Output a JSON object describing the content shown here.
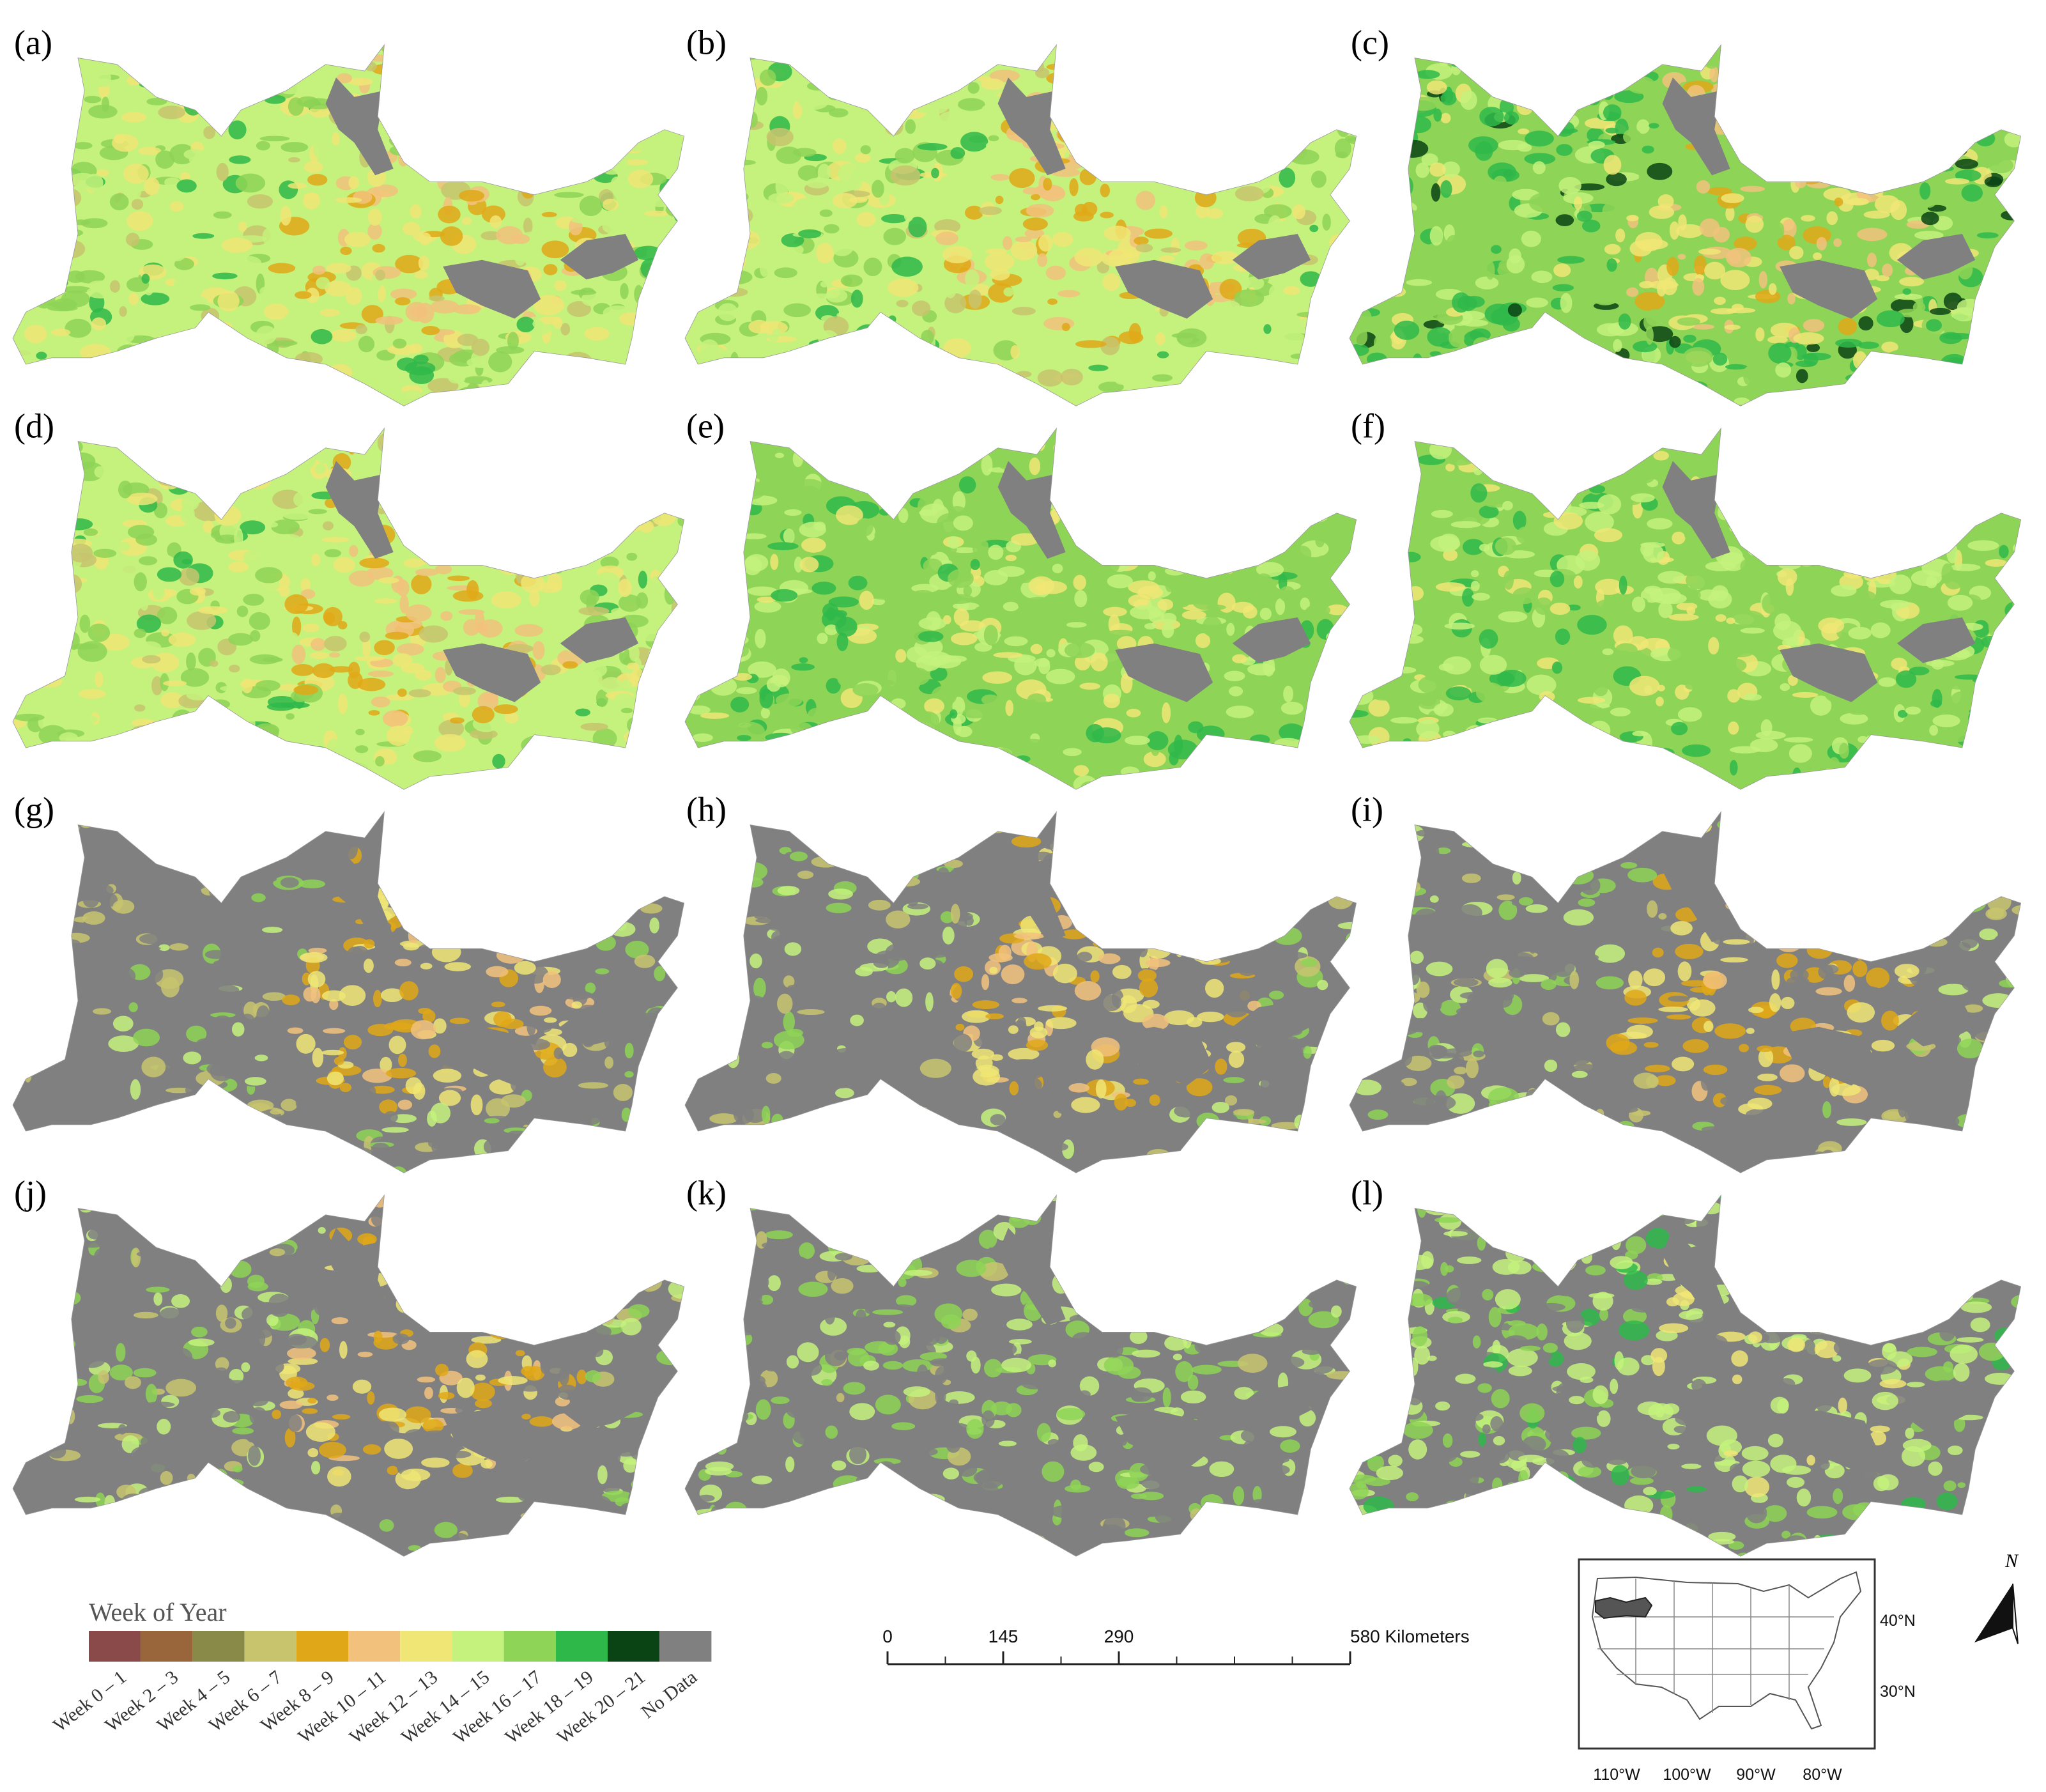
{
  "panels": [
    {
      "label": "(a)"
    },
    {
      "label": "(b)"
    },
    {
      "label": "(c)"
    },
    {
      "label": "(d)"
    },
    {
      "label": "(e)"
    },
    {
      "label": "(f)"
    },
    {
      "label": "(g)"
    },
    {
      "label": "(h)"
    },
    {
      "label": "(i)"
    },
    {
      "label": "(j)"
    },
    {
      "label": "(k)"
    },
    {
      "label": "(l)"
    }
  ],
  "legend": {
    "title": "Week of Year",
    "classes": [
      {
        "label": "Week 0 – 1",
        "color": "#8b4a4a"
      },
      {
        "label": "Week 2 – 3",
        "color": "#98663a"
      },
      {
        "label": "Week 4 – 5",
        "color": "#8a8a48"
      },
      {
        "label": "Week 6 – 7",
        "color": "#c8c46e"
      },
      {
        "label": "Week 8 – 9",
        "color": "#e0a818"
      },
      {
        "label": "Week 10 – 11",
        "color": "#f2c27c"
      },
      {
        "label": "Week 12 – 13",
        "color": "#f0e676"
      },
      {
        "label": "Week 14 – 15",
        "color": "#c4f27c"
      },
      {
        "label": "Week 16 – 17",
        "color": "#8ed456"
      },
      {
        "label": "Week 18 – 19",
        "color": "#2fb84a"
      },
      {
        "label": "Week 20 – 21",
        "color": "#0a4414"
      },
      {
        "label": "No Data",
        "color": "#808080"
      }
    ]
  },
  "scale_bar": {
    "ticks": [
      {
        "value": 0,
        "label": "0"
      },
      {
        "value": 145,
        "label": "145"
      },
      {
        "value": 290,
        "label": "290"
      },
      {
        "value": 580,
        "label": "580 Kilometers"
      }
    ]
  },
  "inset_map": {
    "latitudes": [
      "40°N",
      "30°N"
    ],
    "longitudes": [
      "110°W",
      "100°W",
      "90°W",
      "80°W"
    ]
  },
  "north_arrow": {
    "label": "N"
  }
}
